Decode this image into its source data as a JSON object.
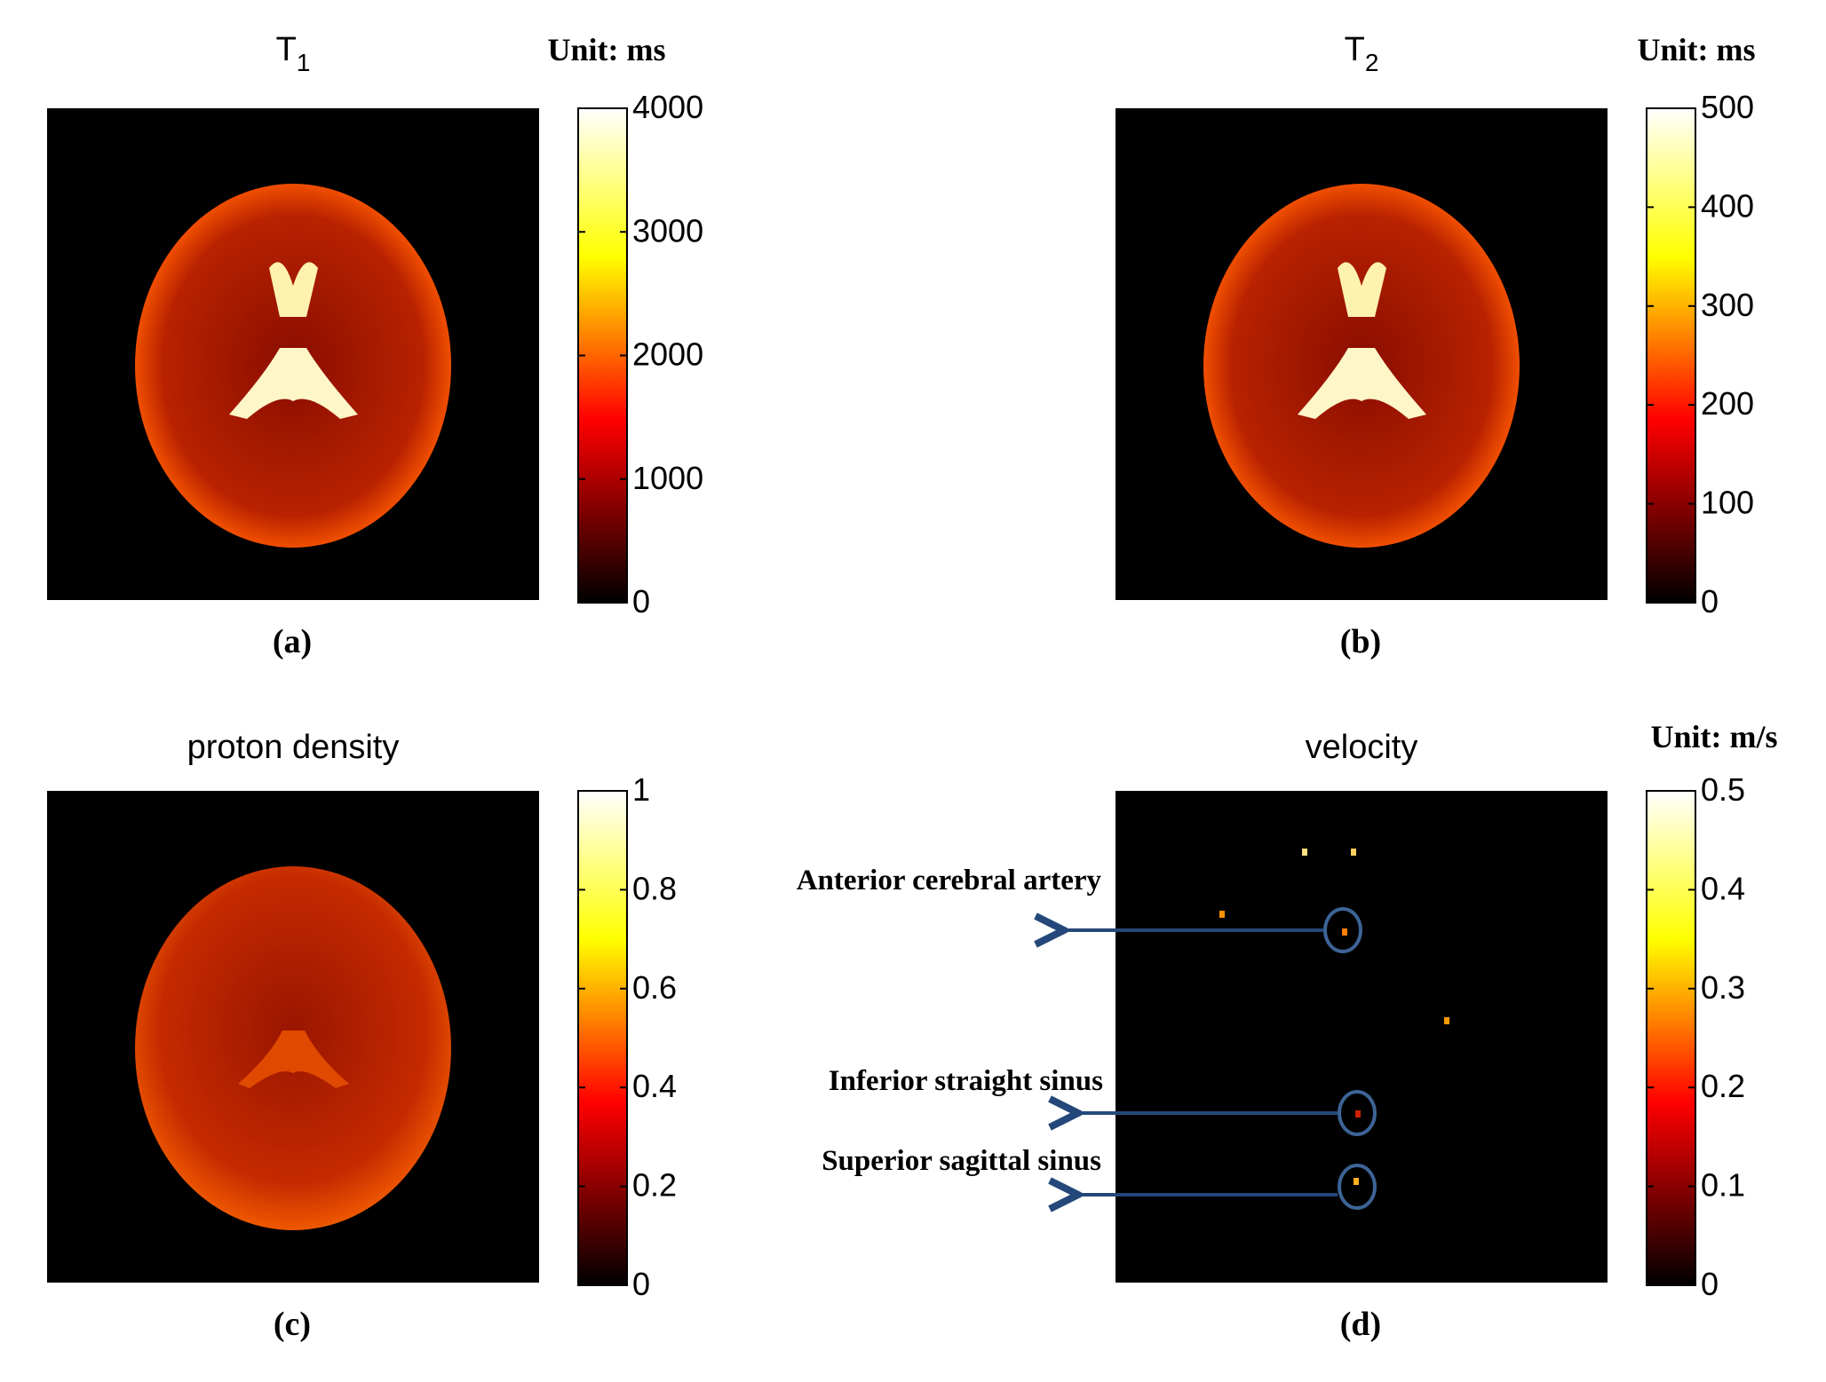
{
  "panels": [
    {
      "title": "T",
      "title_sub": "1",
      "unit": "Unit: ms",
      "label": "(a)",
      "colorbar": {
        "lim": [
          0,
          4000
        ],
        "ticks": [
          0,
          1000,
          2000,
          3000,
          4000
        ]
      }
    },
    {
      "title": "T",
      "title_sub": "2",
      "unit": "Unit: ms",
      "label": "(b)",
      "colorbar": {
        "lim": [
          0,
          500
        ],
        "ticks": [
          0,
          100,
          200,
          300,
          400,
          500
        ]
      }
    },
    {
      "title": "proton density",
      "label": "(c)",
      "colorbar": {
        "lim": [
          0,
          1
        ],
        "ticks": [
          0,
          0.2,
          0.4,
          0.6,
          0.8,
          1
        ]
      }
    },
    {
      "title": "velocity",
      "unit": "Unit: m/s",
      "label": "(d)",
      "colorbar": {
        "lim": [
          0,
          0.5
        ],
        "ticks": [
          0,
          0.1,
          0.2,
          0.3,
          0.4,
          0.5
        ]
      },
      "annotations": [
        "Anterior cerebral artery",
        "Inferior straight sinus",
        "Superior sagittal sinus"
      ]
    }
  ]
}
